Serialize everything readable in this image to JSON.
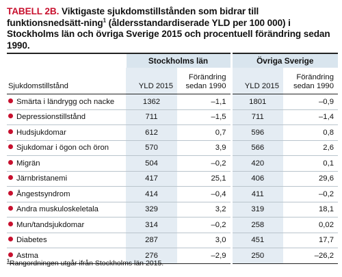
{
  "title": {
    "label": "TABELL 2B.",
    "text_part1": "Viktigaste sjukdomstillstånden som bidrar till funktionsnedsätt-ning",
    "footnote_mark": "1",
    "text_part2": "(åldersstandardiserade YLD per 100 000) i Stockholms län och övriga Sverige 2015 och procentuell förändring sedan 1990."
  },
  "table": {
    "group_headers": [
      "Stockholms län",
      "Övriga Sverige"
    ],
    "col_headers": {
      "condition": "Sjukdomstillstånd",
      "yld_stockholm": "YLD 2015",
      "change_stockholm_line1": "Förändring",
      "change_stockholm_line2": "sedan 1990",
      "yld_ovriga": "YLD 2015",
      "change_ovriga_line1": "Förändring",
      "change_ovriga_line2": "sedan 1990"
    },
    "bullet_color": "#c8102e",
    "header_fill_color": "#d9e5ee",
    "rows": [
      {
        "name": "Smärta i ländrygg och nacke",
        "yld_stockholm": "1362",
        "change_stockholm": "–1,1",
        "yld_ovriga": "1801",
        "change_ovriga": "–0,9"
      },
      {
        "name": "Depressionstillstånd",
        "yld_stockholm": "711",
        "change_stockholm": "–1,5",
        "yld_ovriga": "711",
        "change_ovriga": "–1,4"
      },
      {
        "name": "Hudsjukdomar",
        "yld_stockholm": "612",
        "change_stockholm": "0,7",
        "yld_ovriga": "596",
        "change_ovriga": "0,8"
      },
      {
        "name": "Sjukdomar i ögon och öron",
        "yld_stockholm": "570",
        "change_stockholm": "3,9",
        "yld_ovriga": "566",
        "change_ovriga": "2,6"
      },
      {
        "name": "Migrän",
        "yld_stockholm": "504",
        "change_stockholm": "–0,2",
        "yld_ovriga": "420",
        "change_ovriga": "0,1"
      },
      {
        "name": "Järnbristanemi",
        "yld_stockholm": "417",
        "change_stockholm": "25,1",
        "yld_ovriga": "406",
        "change_ovriga": "29,6"
      },
      {
        "name": "Ångestsyndrom",
        "yld_stockholm": "414",
        "change_stockholm": "–0,4",
        "yld_ovriga": "411",
        "change_ovriga": "–0,2"
      },
      {
        "name": "Andra muskuloskeletala",
        "yld_stockholm": "329",
        "change_stockholm": "3,2",
        "yld_ovriga": "319",
        "change_ovriga": "18,1"
      },
      {
        "name": "Mun/tandsjukdomar",
        "yld_stockholm": "314",
        "change_stockholm": "–0,2",
        "yld_ovriga": "258",
        "change_ovriga": "0,02"
      },
      {
        "name": "Diabetes",
        "yld_stockholm": "287",
        "change_stockholm": "3,0",
        "yld_ovriga": "451",
        "change_ovriga": "17,7"
      },
      {
        "name": "Astma",
        "yld_stockholm": "276",
        "change_stockholm": "–2,9",
        "yld_ovriga": "250",
        "change_ovriga": "–26,2"
      }
    ]
  },
  "footnote": {
    "mark": "1",
    "text": "Rangordningen utgår ifrån Stockholms län 2015."
  }
}
